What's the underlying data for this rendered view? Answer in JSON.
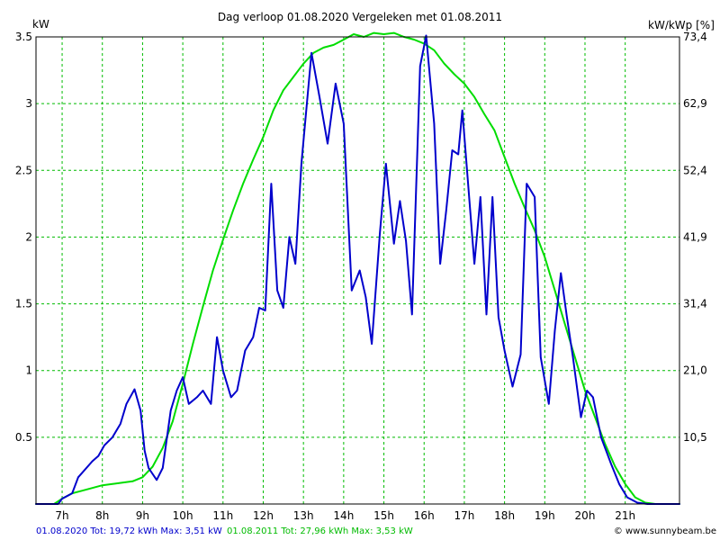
{
  "chart_data": {
    "type": "line",
    "title": "Dag  verloop 01.08.2020   Vergeleken met 01.08.2011",
    "ylabel_left": "kW",
    "ylabel_right": "kW/kWp [%]",
    "x_ticks": [
      "7h",
      "8h",
      "9h",
      "10h",
      "11h",
      "12h",
      "13h",
      "14h",
      "15h",
      "16h",
      "17h",
      "18h",
      "19h",
      "20h",
      "21h"
    ],
    "y_ticks_left": [
      "0.5",
      "1",
      "1.5",
      "2",
      "2.5",
      "3",
      "3.5"
    ],
    "y_ticks_right": [
      "10,5",
      "21,0",
      "31,4",
      "41,9",
      "52,4",
      "62,9",
      "73,4"
    ],
    "xlim": [
      6.35,
      22.35
    ],
    "ylim": [
      0,
      3.5
    ],
    "grid": true,
    "series": [
      {
        "name": "01.08.2020",
        "color": "#0000cc",
        "x": [
          6.35,
          6.9,
          7.0,
          7.25,
          7.4,
          7.75,
          7.9,
          8.05,
          8.25,
          8.45,
          8.6,
          8.8,
          8.95,
          9.05,
          9.15,
          9.35,
          9.5,
          9.7,
          9.85,
          10.0,
          10.15,
          10.35,
          10.5,
          10.7,
          10.85,
          11.0,
          11.2,
          11.35,
          11.55,
          11.75,
          11.9,
          12.05,
          12.2,
          12.35,
          12.5,
          12.65,
          12.8,
          12.95,
          13.2,
          13.4,
          13.6,
          13.8,
          14.0,
          14.2,
          14.4,
          14.55,
          14.7,
          14.9,
          15.05,
          15.25,
          15.4,
          15.55,
          15.7,
          15.9,
          16.05,
          16.25,
          16.4,
          16.55,
          16.7,
          16.85,
          16.95,
          17.25,
          17.4,
          17.55,
          17.7,
          17.85,
          18.0,
          18.2,
          18.4,
          18.55,
          18.75,
          18.9,
          19.1,
          19.25,
          19.4,
          19.55,
          19.7,
          19.9,
          20.05,
          20.2,
          20.4,
          20.65,
          20.85,
          21.05,
          21.3,
          21.55,
          21.75,
          22.35
        ],
        "values": [
          0.0,
          0.0,
          0.04,
          0.08,
          0.2,
          0.32,
          0.36,
          0.44,
          0.5,
          0.6,
          0.75,
          0.86,
          0.7,
          0.4,
          0.27,
          0.18,
          0.27,
          0.7,
          0.85,
          0.95,
          0.75,
          0.8,
          0.85,
          0.75,
          1.25,
          1.0,
          0.8,
          0.85,
          1.15,
          1.25,
          1.47,
          1.45,
          2.4,
          1.6,
          1.47,
          2.0,
          1.8,
          2.55,
          3.38,
          3.05,
          2.7,
          3.15,
          2.85,
          1.6,
          1.75,
          1.55,
          1.2,
          2.03,
          2.55,
          1.95,
          2.27,
          1.97,
          1.42,
          3.28,
          3.51,
          2.85,
          1.8,
          2.2,
          2.65,
          2.62,
          2.95,
          1.8,
          2.3,
          1.42,
          2.3,
          1.4,
          1.15,
          0.88,
          1.12,
          2.4,
          2.3,
          1.1,
          0.75,
          1.3,
          1.73,
          1.4,
          1.1,
          0.65,
          0.85,
          0.8,
          0.5,
          0.3,
          0.15,
          0.05,
          0.01,
          0.0,
          0.0,
          0.0
        ]
      },
      {
        "name": "01.08.2011",
        "color": "#00dd00",
        "x": [
          6.35,
          6.8,
          7.0,
          7.25,
          7.5,
          7.75,
          8.0,
          8.25,
          8.5,
          8.75,
          9.0,
          9.25,
          9.5,
          9.75,
          10.0,
          10.25,
          10.5,
          10.75,
          11.0,
          11.25,
          11.5,
          11.75,
          12.0,
          12.25,
          12.5,
          12.75,
          13.0,
          13.25,
          13.5,
          13.75,
          14.0,
          14.25,
          14.5,
          14.75,
          15.0,
          15.25,
          15.5,
          15.75,
          16.0,
          16.25,
          16.5,
          16.75,
          17.0,
          17.25,
          17.5,
          17.75,
          18.0,
          18.25,
          18.5,
          18.75,
          19.0,
          19.25,
          19.5,
          19.75,
          20.0,
          20.25,
          20.5,
          20.75,
          21.0,
          21.25,
          21.5,
          21.75,
          22.35
        ],
        "values": [
          0.0,
          0.0,
          0.04,
          0.08,
          0.1,
          0.12,
          0.14,
          0.15,
          0.16,
          0.17,
          0.2,
          0.28,
          0.42,
          0.62,
          0.9,
          1.2,
          1.48,
          1.75,
          1.98,
          2.2,
          2.4,
          2.58,
          2.75,
          2.95,
          3.1,
          3.2,
          3.3,
          3.38,
          3.42,
          3.44,
          3.48,
          3.52,
          3.5,
          3.53,
          3.52,
          3.53,
          3.5,
          3.48,
          3.45,
          3.4,
          3.3,
          3.22,
          3.15,
          3.05,
          2.92,
          2.8,
          2.6,
          2.4,
          2.22,
          2.05,
          1.85,
          1.6,
          1.35,
          1.1,
          0.85,
          0.65,
          0.45,
          0.28,
          0.15,
          0.05,
          0.01,
          0.0,
          0.0
        ]
      }
    ],
    "footer": {
      "left_blue": "01.08.2020 Tot: 19,72 kWh Max: 3,51 kW",
      "left_green": "01.08.2011 Tot: 27,96 kWh Max: 3,53 kW",
      "right": "© www.sunnybeam.be"
    }
  }
}
